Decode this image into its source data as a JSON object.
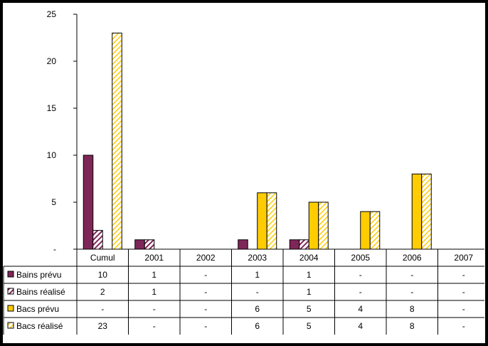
{
  "chart_data": {
    "type": "bar",
    "categories": [
      "Cumul",
      "2001",
      "2002",
      "2003",
      "2004",
      "2005",
      "2006",
      "2007"
    ],
    "ylim": [
      0,
      25
    ],
    "yticks": [
      {
        "value": 0,
        "label": "-"
      },
      {
        "value": 5,
        "label": "5"
      },
      {
        "value": 10,
        "label": "10"
      },
      {
        "value": 15,
        "label": "15"
      },
      {
        "value": 20,
        "label": "20"
      },
      {
        "value": 25,
        "label": "25"
      }
    ],
    "grid": false,
    "legend": "data-table-left",
    "series": [
      {
        "name": "Bains prévu",
        "color": "#7f2659",
        "pattern": "solid",
        "values": [
          10,
          1,
          null,
          1,
          1,
          null,
          null,
          null
        ],
        "labels": [
          "10",
          "1",
          "-",
          "1",
          "1",
          "-",
          "-",
          "-"
        ]
      },
      {
        "name": "Bains réalisé",
        "color": "#7f2659",
        "pattern": "hatched",
        "values": [
          2,
          1,
          null,
          null,
          1,
          null,
          null,
          null
        ],
        "labels": [
          "2",
          "1",
          "-",
          "-",
          "1",
          "-",
          "-",
          "-"
        ]
      },
      {
        "name": "Bacs prévu",
        "color": "#ffcc00",
        "pattern": "solid",
        "values": [
          null,
          null,
          null,
          6,
          5,
          4,
          8,
          null
        ],
        "labels": [
          "-",
          "-",
          "-",
          "6",
          "5",
          "4",
          "8",
          "-"
        ]
      },
      {
        "name": "Bacs réalisé",
        "color": "#ffcc00",
        "pattern": "hatched",
        "values": [
          23,
          null,
          null,
          6,
          5,
          4,
          8,
          null
        ],
        "labels": [
          "23",
          "-",
          "-",
          "6",
          "5",
          "4",
          "8",
          "-"
        ]
      }
    ]
  }
}
